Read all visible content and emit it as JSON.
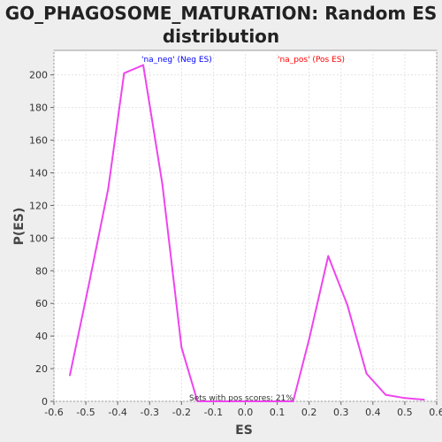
{
  "chart_data": {
    "type": "line",
    "title_line1": "GO_PHAGOSOME_MATURATION: Random ES",
    "title_line2": "distribution",
    "xlabel": "ES",
    "ylabel": "P(ES)",
    "xlim": [
      -0.6,
      0.6
    ],
    "ylim": [
      0,
      215
    ],
    "xticks": [
      -0.6,
      -0.5,
      -0.4,
      -0.3,
      -0.2,
      -0.1,
      0.0,
      0.1,
      0.2,
      0.3,
      0.4,
      0.5,
      0.6
    ],
    "xtick_labels": [
      "-0.6",
      "-0.5",
      "-0.4",
      "-0.3",
      "-0.2",
      "-0.1",
      "0.0",
      "0.1",
      "0.2",
      "0.3",
      "0.4",
      "0.5",
      "0.6"
    ],
    "yticks": [
      0,
      20,
      40,
      60,
      80,
      100,
      120,
      140,
      160,
      180,
      200
    ],
    "ytick_labels": [
      "0",
      "20",
      "40",
      "60",
      "80",
      "100",
      "120",
      "140",
      "160",
      "180",
      "200"
    ],
    "grid": true,
    "legend": {
      "neg": "'na_neg' (Neg ES)",
      "pos": "'na_pos' (Pos ES)",
      "neg_color": "#0000ff",
      "pos_color": "#ff0000"
    },
    "series_color": "#ee44ee",
    "series": [
      {
        "x": [
          -0.55,
          -0.49,
          -0.43,
          -0.38,
          -0.32,
          -0.26,
          -0.2,
          -0.15,
          -0.09,
          -0.03,
          0.03,
          0.09,
          0.15,
          0.2,
          0.26,
          0.32,
          0.38,
          0.44,
          0.5,
          0.56
        ],
        "y": [
          16,
          72,
          130,
          201,
          206,
          133,
          33,
          0,
          0,
          0,
          0,
          0,
          0,
          38,
          89,
          59,
          17,
          4,
          2,
          1
        ]
      }
    ],
    "annotation": "Sets with pos scores: 21%"
  }
}
